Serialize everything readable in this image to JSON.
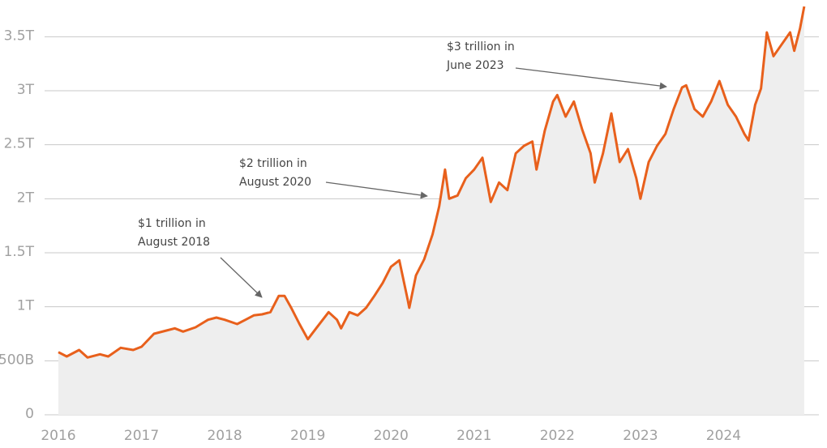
{
  "chart_data": {
    "type": "line",
    "x": [
      2016.0,
      2016.1,
      2016.25,
      2016.35,
      2016.5,
      2016.6,
      2016.75,
      2016.9,
      2017.0,
      2017.15,
      2017.3,
      2017.4,
      2017.5,
      2017.65,
      2017.8,
      2017.9,
      2018.0,
      2018.15,
      2018.25,
      2018.35,
      2018.45,
      2018.55,
      2018.65,
      2018.72,
      2018.8,
      2018.9,
      2019.0,
      2019.1,
      2019.25,
      2019.35,
      2019.4,
      2019.5,
      2019.6,
      2019.7,
      2019.8,
      2019.9,
      2020.0,
      2020.1,
      2020.2,
      2020.22,
      2020.3,
      2020.4,
      2020.5,
      2020.58,
      2020.65,
      2020.7,
      2020.8,
      2020.9,
      2021.0,
      2021.1,
      2021.2,
      2021.3,
      2021.4,
      2021.5,
      2021.6,
      2021.7,
      2021.75,
      2021.85,
      2021.95,
      2022.0,
      2022.1,
      2022.2,
      2022.3,
      2022.4,
      2022.45,
      2022.55,
      2022.65,
      2022.75,
      2022.85,
      2022.95,
      2023.0,
      2023.1,
      2023.2,
      2023.3,
      2023.4,
      2023.5,
      2023.55,
      2023.65,
      2023.75,
      2023.85,
      2023.95,
      2024.05,
      2024.15,
      2024.25,
      2024.3,
      2024.38,
      2024.45,
      2024.52,
      2024.6,
      2024.7,
      2024.8,
      2024.85,
      2024.92,
      2024.97
    ],
    "series": [
      {
        "color": "#e8601c",
        "values": [
          0.58,
          0.54,
          0.6,
          0.53,
          0.56,
          0.54,
          0.62,
          0.6,
          0.63,
          0.75,
          0.78,
          0.8,
          0.77,
          0.81,
          0.88,
          0.9,
          0.88,
          0.84,
          0.88,
          0.92,
          0.93,
          0.95,
          1.1,
          1.1,
          0.99,
          0.84,
          0.7,
          0.8,
          0.95,
          0.88,
          0.8,
          0.95,
          0.92,
          0.99,
          1.1,
          1.22,
          1.37,
          1.43,
          1.07,
          0.99,
          1.29,
          1.44,
          1.67,
          1.93,
          2.27,
          2.0,
          2.03,
          2.19,
          2.27,
          2.38,
          1.97,
          2.15,
          2.08,
          2.42,
          2.49,
          2.53,
          2.27,
          2.63,
          2.9,
          2.96,
          2.76,
          2.9,
          2.64,
          2.42,
          2.15,
          2.42,
          2.79,
          2.34,
          2.46,
          2.19,
          2.0,
          2.34,
          2.49,
          2.6,
          2.83,
          3.03,
          3.05,
          2.83,
          2.76,
          2.9,
          3.09,
          2.87,
          2.76,
          2.6,
          2.54,
          2.87,
          3.02,
          3.54,
          3.32,
          3.43,
          3.54,
          3.37,
          3.58,
          3.78
        ]
      }
    ],
    "area_color": "#eeeeee",
    "xlim": [
      2016,
      2025
    ],
    "xticks": [
      2016,
      2017,
      2018,
      2019,
      2020,
      2021,
      2022,
      2023,
      2024
    ],
    "ylim": [
      0,
      3.84
    ],
    "yticks": [
      0,
      {
        "value": 0.5,
        "label": "500B"
      },
      {
        "value": 1,
        "label": "1T"
      },
      {
        "value": 1.5,
        "label": "1.5T"
      },
      {
        "value": 2,
        "label": "2T"
      },
      {
        "value": 2.5,
        "label": "2.5T"
      },
      {
        "value": 3,
        "label": "3T"
      },
      {
        "value": 3.5,
        "label": "3.5T"
      }
    ],
    "grid": true,
    "annotations": [
      {
        "text": [
          "$1 trillion in",
          "August 2018"
        ]
      },
      {
        "text": [
          "$2 trillion in",
          "August 2020"
        ]
      },
      {
        "text": [
          "$3 trillion in",
          "June 2023"
        ]
      }
    ]
  }
}
